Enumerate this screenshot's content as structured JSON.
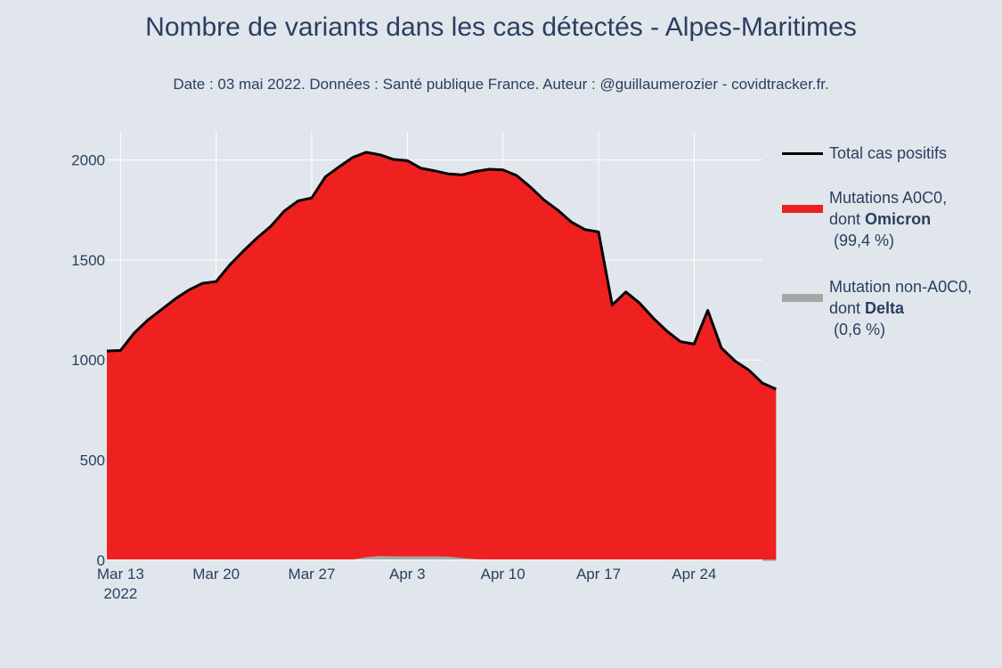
{
  "chart_data": {
    "type": "area",
    "title": "Nombre de variants dans les cas détectés - Alpes-Maritimes",
    "subtitle": "Date : 03 mai 2022. Données : Santé publique France. Auteur : @guillaumerozier - covidtracker.fr.",
    "x_start": "2022-03-12",
    "x_end": "2022-04-29",
    "x_ticks": [
      {
        "date": "2022-03-13",
        "label": "Mar 13",
        "sublabel": "2022"
      },
      {
        "date": "2022-03-20",
        "label": "Mar 20"
      },
      {
        "date": "2022-03-27",
        "label": "Mar 27"
      },
      {
        "date": "2022-04-03",
        "label": "Apr 3"
      },
      {
        "date": "2022-04-10",
        "label": "Apr 10"
      },
      {
        "date": "2022-04-17",
        "label": "Apr 17"
      },
      {
        "date": "2022-04-24",
        "label": "Apr 24"
      }
    ],
    "y_ticks": [
      0,
      500,
      1000,
      1500,
      2000
    ],
    "ylim": [
      0,
      2140
    ],
    "grid": true,
    "legend_position": "right",
    "series": [
      {
        "name": "Total cas positifs",
        "type": "line",
        "color": "#000000",
        "values": [
          1045,
          1048,
          1135,
          1200,
          1252,
          1305,
          1350,
          1383,
          1392,
          1475,
          1545,
          1610,
          1668,
          1745,
          1795,
          1810,
          1915,
          1965,
          2012,
          2038,
          2025,
          2002,
          1996,
          1958,
          1945,
          1930,
          1925,
          1942,
          1953,
          1950,
          1922,
          1865,
          1800,
          1750,
          1690,
          1652,
          1640,
          1275,
          1340,
          1285,
          1210,
          1145,
          1092,
          1080,
          1248,
          1060,
          995,
          950,
          885,
          855
        ]
      },
      {
        "name": "Mutations A0C0,",
        "name_line2_prefix": "dont ",
        "name_bold": "Omicron",
        "pct": "(99,4 %)",
        "type": "area",
        "color": "#ef2020",
        "values": [
          1045,
          1048,
          1135,
          1200,
          1252,
          1305,
          1350,
          1383,
          1392,
          1475,
          1545,
          1610,
          1668,
          1745,
          1795,
          1810,
          1915,
          1965,
          2012,
          2038,
          2025,
          2002,
          1996,
          1958,
          1945,
          1930,
          1925,
          1942,
          1953,
          1950,
          1922,
          1865,
          1800,
          1750,
          1690,
          1652,
          1640,
          1275,
          1340,
          1285,
          1210,
          1145,
          1092,
          1080,
          1248,
          1060,
          995,
          950,
          885,
          855
        ]
      },
      {
        "name": "Mutation non-A0C0,",
        "name_line2_prefix": "dont ",
        "name_bold": "Delta",
        "pct": "(0,6 %)",
        "type": "area",
        "color": "#a6a6a6",
        "values": [
          0,
          0,
          0,
          0,
          0,
          0,
          0,
          0,
          0,
          0,
          0,
          0,
          0,
          0,
          0,
          0,
          0,
          0,
          0,
          12,
          18,
          16,
          16,
          16,
          16,
          15,
          8,
          2,
          0,
          0,
          0,
          0,
          0,
          0,
          0,
          0,
          0,
          0,
          0,
          0,
          0,
          0,
          0,
          0,
          0,
          0,
          0,
          0,
          0,
          0
        ]
      }
    ]
  }
}
